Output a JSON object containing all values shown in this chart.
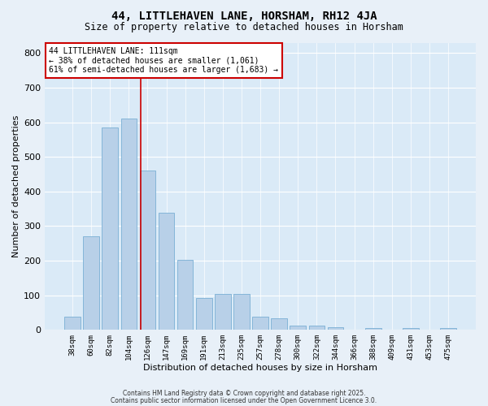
{
  "title": "44, LITTLEHAVEN LANE, HORSHAM, RH12 4JA",
  "subtitle": "Size of property relative to detached houses in Horsham",
  "xlabel": "Distribution of detached houses by size in Horsham",
  "ylabel": "Number of detached properties",
  "bar_color": "#b8d0e8",
  "bar_edge_color": "#7aafd4",
  "background_color": "#daeaf7",
  "grid_color": "#ffffff",
  "fig_background": "#e8f0f8",
  "categories": [
    "38sqm",
    "60sqm",
    "82sqm",
    "104sqm",
    "126sqm",
    "147sqm",
    "169sqm",
    "191sqm",
    "213sqm",
    "235sqm",
    "257sqm",
    "278sqm",
    "300sqm",
    "322sqm",
    "344sqm",
    "366sqm",
    "388sqm",
    "409sqm",
    "431sqm",
    "453sqm",
    "475sqm"
  ],
  "values": [
    38,
    270,
    585,
    610,
    460,
    338,
    203,
    93,
    103,
    103,
    38,
    33,
    13,
    13,
    8,
    0,
    5,
    0,
    5,
    0,
    5
  ],
  "ylim": [
    0,
    830
  ],
  "yticks": [
    0,
    100,
    200,
    300,
    400,
    500,
    600,
    700,
    800
  ],
  "property_line_x": 3.62,
  "annotation_text": "44 LITTLEHAVEN LANE: 111sqm\n← 38% of detached houses are smaller (1,061)\n61% of semi-detached houses are larger (1,683) →",
  "annotation_box_color": "#ffffff",
  "annotation_box_edge_color": "#cc0000",
  "red_line_color": "#cc0000",
  "footer_line1": "Contains HM Land Registry data © Crown copyright and database right 2025.",
  "footer_line2": "Contains public sector information licensed under the Open Government Licence 3.0."
}
